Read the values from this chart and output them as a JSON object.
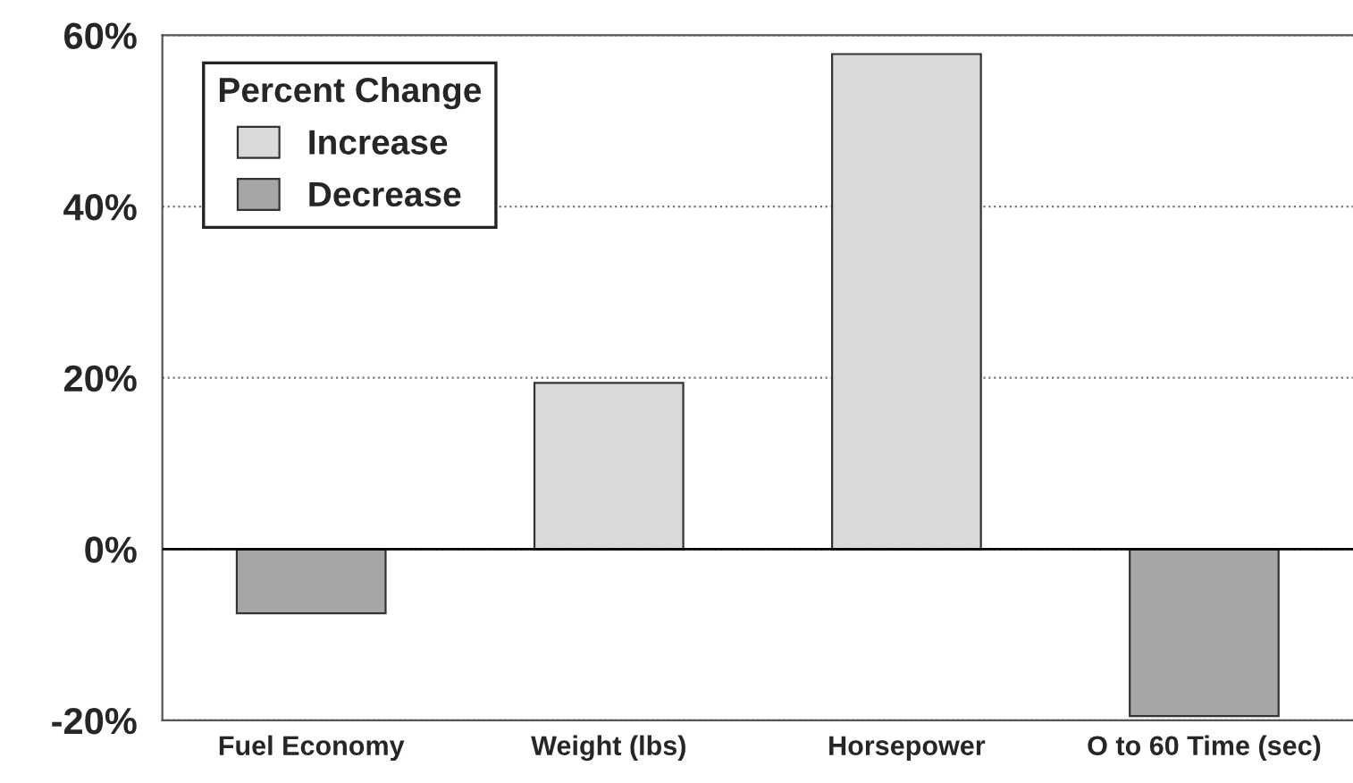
{
  "chart_data": {
    "type": "bar",
    "categories": [
      "Fuel Economy",
      "Weight (lbs)",
      "Horsepower",
      "O to 60 Time (sec)"
    ],
    "legend_title": "Percent Change",
    "series": [
      {
        "name": "Increase",
        "color": "#d9d9d9",
        "values": [
          null,
          19.4,
          57.8,
          null
        ]
      },
      {
        "name": "Decrease",
        "color": "#a6a6a6",
        "values": [
          -7.5,
          null,
          null,
          -19.5
        ]
      }
    ],
    "ylim": [
      -20,
      60
    ],
    "yticks": [
      {
        "value": -20,
        "label": "-20%"
      },
      {
        "value": 0,
        "label": "0%"
      },
      {
        "value": 20,
        "label": "20%"
      },
      {
        "value": 40,
        "label": "40%"
      },
      {
        "value": 60,
        "label": "60%"
      }
    ],
    "ref_lines": [
      {
        "axis": "y",
        "value": 0,
        "color": "#000000",
        "line_style": "solid"
      }
    ],
    "grid": "y",
    "legend": "top left"
  }
}
